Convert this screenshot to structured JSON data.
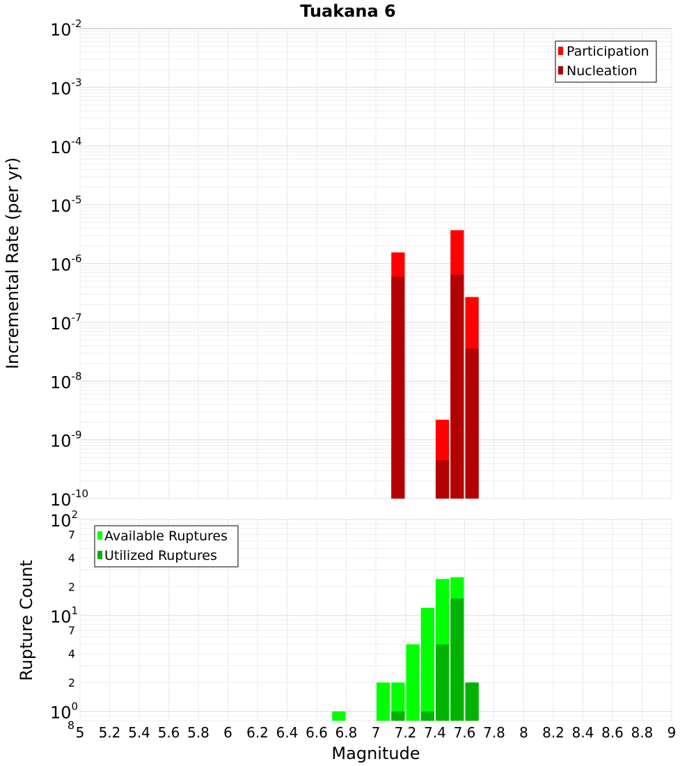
{
  "chart_data": [
    {
      "type": "bar",
      "title": "Tuakana 6",
      "xlabel": "",
      "ylabel": "Incremental Rate (per yr)",
      "yscale": "log",
      "ylim": [
        1e-10,
        0.01
      ],
      "xlim": [
        5,
        9
      ],
      "grid": true,
      "legend_position": "top-right",
      "bar_width": 0.1,
      "ytick_exponents": [
        "-2",
        "-3",
        "-4",
        "-5",
        "-6",
        "-7",
        "-8",
        "-9",
        "-10"
      ],
      "ytick_base": "10",
      "series": [
        {
          "name": "Participation",
          "color": "#ff0000",
          "x": [
            7.15,
            7.45,
            7.55,
            7.65
          ],
          "values": [
            1.55e-06,
            2.2e-09,
            3.7e-06,
            2.7e-07
          ]
        },
        {
          "name": "Nucleation",
          "color": "#b30000",
          "x": [
            7.15,
            7.45,
            7.55,
            7.65
          ],
          "values": [
            6e-07,
            4.5e-10,
            6.5e-07,
            3.6e-08
          ]
        }
      ]
    },
    {
      "type": "bar",
      "xlabel": "Magnitude",
      "ylabel": "Rupture Count",
      "yscale": "log",
      "ylim": [
        0.8,
        100
      ],
      "xlim": [
        5,
        9
      ],
      "grid": true,
      "legend_position": "top-left",
      "bar_width": 0.1,
      "xticks": [
        "5",
        "5.2",
        "5.4",
        "5.6",
        "5.8",
        "6",
        "6.2",
        "6.4",
        "6.6",
        "6.8",
        "7",
        "7.2",
        "7.4",
        "7.6",
        "7.8",
        "8",
        "8.2",
        "8.4",
        "8.6",
        "8.8",
        "9"
      ],
      "ytick_labels": {
        "major": [
          {
            "v": 100,
            "base": "10",
            "exp": "2"
          },
          {
            "v": 10,
            "base": "10",
            "exp": "1"
          },
          {
            "v": 1,
            "base": "10",
            "exp": "0"
          }
        ],
        "minor": [
          {
            "v": 70,
            "t": "7"
          },
          {
            "v": 40,
            "t": "4"
          },
          {
            "v": 20,
            "t": "2"
          },
          {
            "v": 7,
            "t": "7"
          },
          {
            "v": 4,
            "t": "4"
          },
          {
            "v": 2,
            "t": "2"
          },
          {
            "v": 0.8,
            "t": "8"
          }
        ]
      },
      "series": [
        {
          "name": "Available Ruptures",
          "color": "#00ff00",
          "x": [
            6.75,
            7.05,
            7.15,
            7.25,
            7.35,
            7.45,
            7.55,
            7.65
          ],
          "values": [
            1,
            2,
            2,
            5,
            12,
            24,
            25,
            2
          ]
        },
        {
          "name": "Utilized Ruptures",
          "color": "#00b300",
          "x": [
            7.15,
            7.35,
            7.45,
            7.55,
            7.65
          ],
          "values": [
            1,
            1,
            5,
            15,
            2
          ]
        }
      ]
    }
  ]
}
